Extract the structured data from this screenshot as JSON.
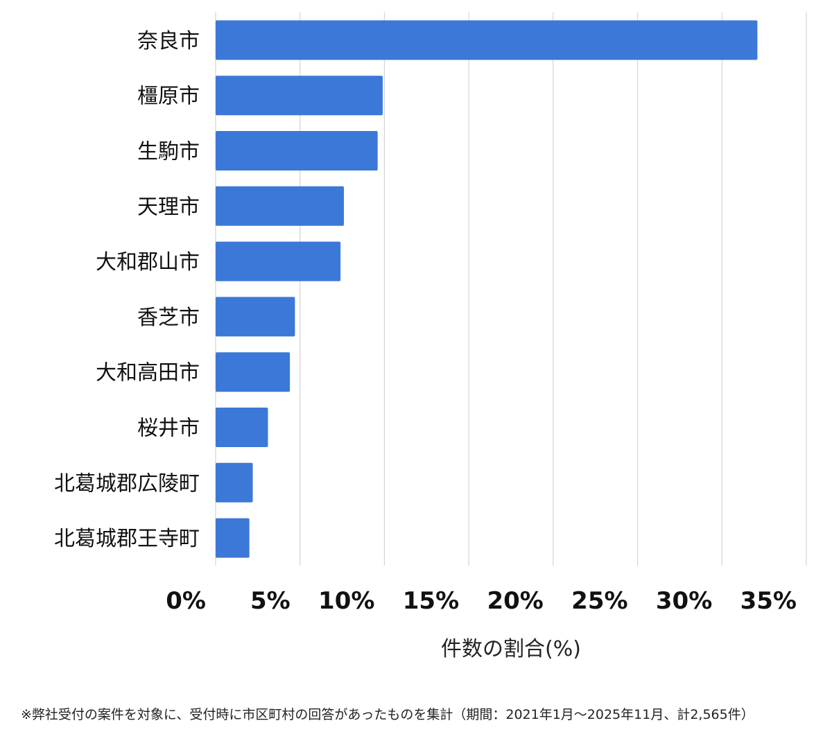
{
  "chart_data": {
    "type": "bar",
    "orientation": "horizontal",
    "categories": [
      "奈良市",
      "橿原市",
      "生駒市",
      "天理市",
      "大和郡山市",
      "香芝市",
      "大和高田市",
      "桜井市",
      "北葛城郡広陵町",
      "北葛城郡王寺町"
    ],
    "values": [
      32.1,
      9.9,
      9.6,
      7.6,
      7.4,
      4.7,
      4.4,
      3.1,
      2.2,
      2.0
    ],
    "x_ticks": [
      "0%",
      "5%",
      "10%",
      "15%",
      "20%",
      "25%",
      "30%",
      "35%"
    ],
    "xlim": [
      0,
      35
    ],
    "xlabel": "件数の割合(%)",
    "ylabel": "",
    "title": "",
    "grid": "vertical",
    "bar_color": "#3b78d8"
  },
  "footnote": "※弊社受付の案件を対象に、受付時に市区町村の回答があったものを集計（期間：2021年1月〜2025年11月、計2,565件）"
}
